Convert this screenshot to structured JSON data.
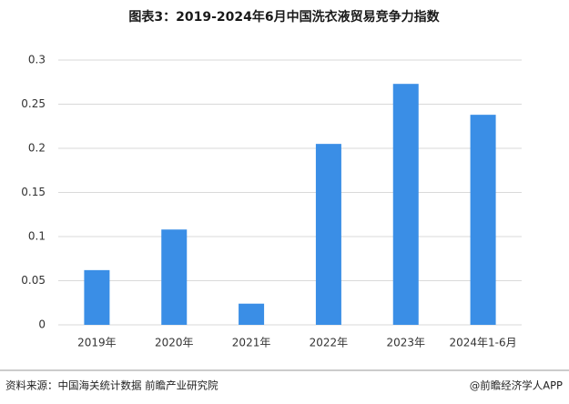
{
  "chart_data": {
    "type": "bar",
    "title": "图表3：2019-2024年6月中国洗衣液贸易竞争力指数",
    "categories": [
      "2019年",
      "2020年",
      "2021年",
      "2022年",
      "2023年",
      "2024年1-6月"
    ],
    "values": [
      0.062,
      0.108,
      0.024,
      0.205,
      0.273,
      0.238
    ],
    "color": "#3a8ee6",
    "ylim": [
      0,
      0.3
    ],
    "yticks": [
      0,
      0.05,
      0.1,
      0.15,
      0.2,
      0.25,
      0.3
    ],
    "grid": true,
    "source": "资料来源：中国海关统计数据 前瞻产业研究院",
    "credit": "@前瞻经济学人APP"
  }
}
